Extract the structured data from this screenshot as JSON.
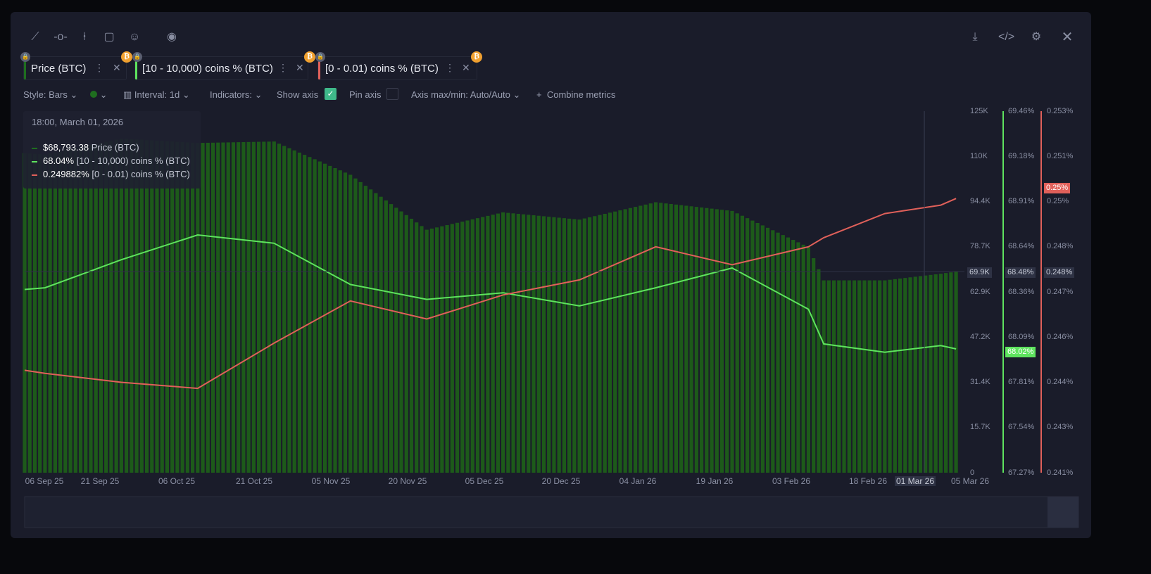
{
  "toolbar": {
    "icons": [
      "line-draw-icon",
      "horizontal-ray-icon",
      "vertical-line-icon",
      "note-icon",
      "emoji-icon",
      "eye-icon"
    ],
    "right_icons": [
      "download-icon",
      "embed-code-icon",
      "settings-icon",
      "close-icon"
    ]
  },
  "tabs": [
    {
      "label": "Price (BTC)",
      "color": "#1f6e1f"
    },
    {
      "label": "[10 - 10,000) coins % (BTC)",
      "color": "#5ee35e"
    },
    {
      "label": "[0 - 0.01) coins % (BTC)",
      "color": "#e0605a"
    }
  ],
  "options": {
    "style": "Style: Bars",
    "interval": "Interval: 1d",
    "indicators": "Indicators:",
    "show_axis": "Show axis",
    "show_axis_checked": true,
    "pin_axis": "Pin axis",
    "pin_axis_checked": false,
    "axis_maxmin": "Axis max/min: Auto/Auto",
    "combine": "Combine metrics"
  },
  "tooltip": {
    "date": "18:00, March 01, 2026",
    "rows": [
      {
        "value": "$68,793.38",
        "label": "Price (BTC)",
        "color": "#1f6e1f"
      },
      {
        "value": "68.04%",
        "label": "[10 - 10,000) coins % (BTC)",
        "color": "#5ee35e"
      },
      {
        "value": "0.249882%",
        "label": "[0 - 0.01) coins % (BTC)",
        "color": "#e0605a"
      }
    ]
  },
  "colors": {
    "price": "#1d5a1a",
    "green": "#5ee35e",
    "red": "#e0605a",
    "bg": "#1a1c2a"
  },
  "chart_data": {
    "type": "bar+line",
    "x_ticks": [
      "06 Sep 25",
      "21 Sep 25",
      "06 Oct 25",
      "21 Oct 25",
      "05 Nov 25",
      "20 Nov 25",
      "05 Dec 25",
      "20 Dec 25",
      "04 Jan 26",
      "19 Jan 26",
      "03 Feb 26",
      "18 Feb 26",
      "01 Mar 26",
      "05 Mar 26"
    ],
    "price_axis": {
      "ticks": [
        "125K",
        "110K",
        "94.4K",
        "78.7K",
        "62.9K",
        "47.2K",
        "31.4K",
        "15.7K",
        "0"
      ],
      "range": [
        0,
        125000
      ],
      "crosshair": "69.9K"
    },
    "green_axis": {
      "ticks": [
        "69.46%",
        "69.18%",
        "68.91%",
        "68.64%",
        "68.36%",
        "68.09%",
        "67.81%",
        "67.54%",
        "67.27%"
      ],
      "range": [
        67.27,
        69.46
      ],
      "crosshair": "68.48%",
      "last": "68.02%"
    },
    "red_axis": {
      "ticks": [
        "0.253%",
        "0.251%",
        "0.25%",
        "0.248%",
        "0.247%",
        "0.246%",
        "0.244%",
        "0.243%",
        "0.241%"
      ],
      "range": [
        0.241,
        0.253
      ],
      "crosshair": "0.248%",
      "last": "0.25%"
    },
    "dates": [
      "2025-09-02",
      "2025-09-06",
      "2025-09-21",
      "2025-10-06",
      "2025-10-21",
      "2025-11-05",
      "2025-11-20",
      "2025-12-05",
      "2025-12-20",
      "2026-01-04",
      "2026-01-19",
      "2026-02-03",
      "2026-02-06",
      "2026-02-18",
      "2026-03-01",
      "2026-03-04"
    ],
    "series": [
      {
        "name": "Price (BTC)",
        "type": "bar",
        "values": [
          110500,
          110000,
          115500,
          114000,
          114500,
          103000,
          84000,
          90000,
          87500,
          93500,
          90500,
          78000,
          66500,
          66500,
          68800,
          69500
        ]
      },
      {
        "name": "[10 - 10,000) coins % (BTC)",
        "type": "line",
        "values": [
          68.38,
          68.39,
          68.56,
          68.71,
          68.66,
          68.41,
          68.32,
          68.36,
          68.28,
          68.39,
          68.51,
          68.26,
          68.05,
          68.0,
          68.04,
          68.02
        ]
      },
      {
        "name": "[0 - 0.01) coins % (BTC)",
        "type": "line",
        "values": [
          0.2444,
          0.2443,
          0.244,
          0.2438,
          0.2453,
          0.2467,
          0.2461,
          0.2469,
          0.2474,
          0.2485,
          0.2479,
          0.2485,
          0.2488,
          0.2496,
          0.24988,
          0.2501
        ]
      }
    ]
  }
}
